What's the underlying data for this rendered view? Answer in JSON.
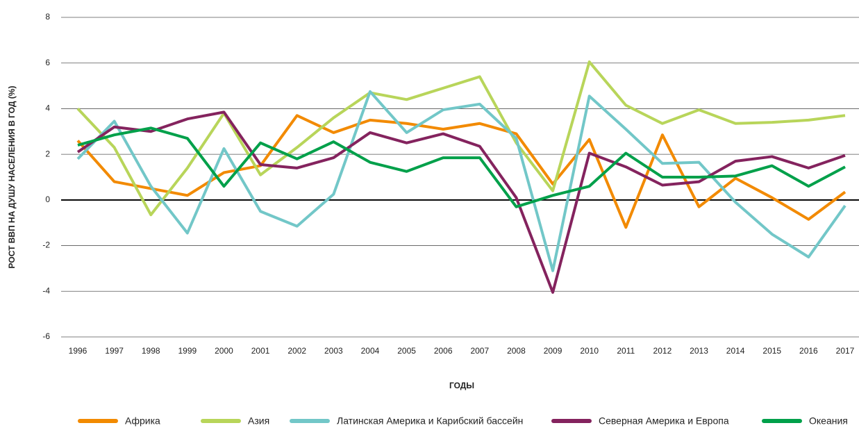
{
  "chart_data": {
    "type": "line",
    "y_label": "РОСТ ВВП НА ДУШУ НАСЕЛЕНИЯ В ГОД (%)",
    "x_label": "ГОДЫ",
    "categories": [
      "1996",
      "1997",
      "1998",
      "1999",
      "2000",
      "2001",
      "2002",
      "2003",
      "2004",
      "2005",
      "2006",
      "2007",
      "2008",
      "2009",
      "2010",
      "2011",
      "2012",
      "2013",
      "2014",
      "2015",
      "2016",
      "2017"
    ],
    "series": [
      {
        "name": "Африка",
        "color": "#f28a00",
        "values": [
          2.6,
          0.8,
          0.5,
          0.2,
          1.2,
          1.5,
          3.7,
          2.95,
          3.5,
          3.35,
          3.1,
          3.35,
          2.9,
          0.7,
          2.65,
          -1.2,
          2.85,
          -0.3,
          0.95,
          0.1,
          -0.85,
          0.35
        ]
      },
      {
        "name": "Азия",
        "color": "#b8d55a",
        "values": [
          4.0,
          2.3,
          -0.65,
          1.4,
          3.8,
          1.1,
          2.3,
          3.6,
          4.7,
          4.4,
          4.9,
          5.4,
          2.5,
          0.4,
          6.05,
          4.15,
          3.35,
          3.95,
          3.35,
          3.4,
          3.5,
          3.7
        ]
      },
      {
        "name": "Латинская Америка и Карибский бассейн",
        "color": "#72c7c8",
        "values": [
          1.8,
          3.45,
          0.6,
          -1.45,
          2.25,
          -0.5,
          -1.15,
          0.25,
          4.75,
          2.95,
          3.95,
          4.2,
          2.7,
          -3.1,
          4.55,
          3.1,
          1.6,
          1.65,
          -0.1,
          -1.5,
          -2.5,
          -0.25
        ]
      },
      {
        "name": "Северная Америка и Европа",
        "color": "#84235e",
        "values": [
          2.1,
          3.2,
          3.0,
          3.55,
          3.85,
          1.55,
          1.4,
          1.85,
          2.95,
          2.5,
          2.9,
          2.35,
          0.1,
          -4.05,
          2.05,
          1.45,
          0.65,
          0.8,
          1.7,
          1.9,
          1.4,
          1.95
        ]
      },
      {
        "name": "Океания",
        "color": "#00a04a",
        "values": [
          2.4,
          2.85,
          3.15,
          2.7,
          0.6,
          2.5,
          1.8,
          2.55,
          1.65,
          1.25,
          1.85,
          1.85,
          -0.3,
          0.2,
          0.6,
          2.05,
          1.0,
          1.0,
          1.05,
          1.5,
          0.6,
          1.45
        ]
      }
    ],
    "ylim": [
      -6,
      8
    ],
    "yticks": [
      -6,
      -4,
      -2,
      0,
      2,
      4,
      6,
      8
    ],
    "grid": true,
    "legend": "bottom"
  }
}
